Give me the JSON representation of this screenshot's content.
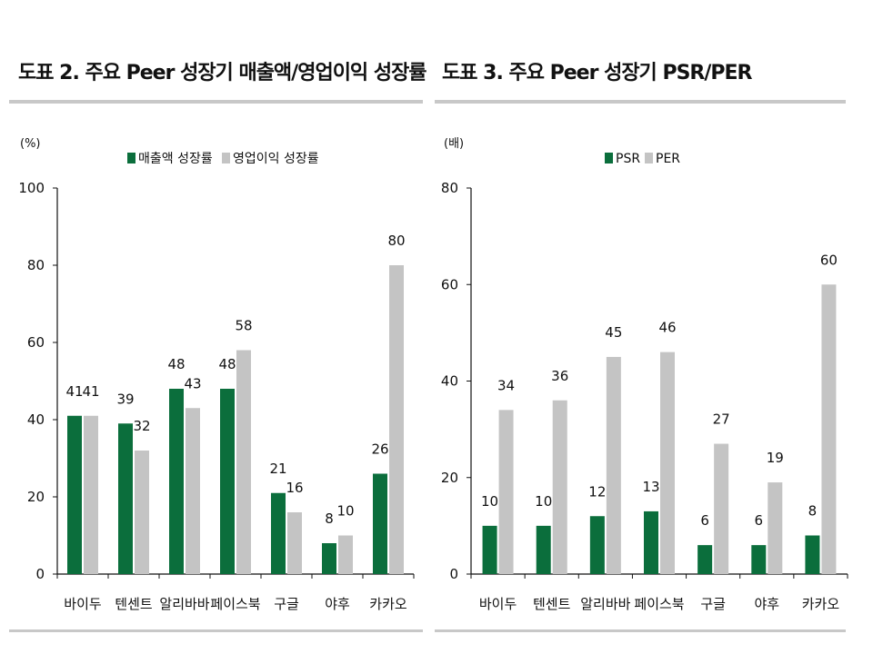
{
  "colors": {
    "primary": "#0b6e3c",
    "secondary": "#c4c4c4",
    "axis": "#111111",
    "rule": "#c8c8c8"
  },
  "chart_data": [
    {
      "type": "bar",
      "title": "도표 2. 주요 Peer 성장기 매출액/영업이익 성장률",
      "ylabel": "(%)",
      "ylim": [
        0,
        100
      ],
      "yticks": [
        0,
        20,
        40,
        60,
        80,
        100
      ],
      "grid": false,
      "legend_position": "top",
      "categories": [
        "바이두",
        "텐센트",
        "알리바바",
        "페이스북",
        "구글",
        "야후",
        "카카오"
      ],
      "series": [
        {
          "name": "매출액 성장률",
          "values": [
            41,
            39,
            48,
            48,
            21,
            8,
            26
          ]
        },
        {
          "name": "영업이익 성장률",
          "values": [
            41,
            32,
            43,
            58,
            16,
            10,
            80
          ]
        }
      ]
    },
    {
      "type": "bar",
      "title": "도표 3. 주요 Peer 성장기 PSR/PER",
      "ylabel": "(배)",
      "ylim": [
        0,
        80
      ],
      "yticks": [
        0,
        20,
        40,
        60,
        80
      ],
      "grid": false,
      "legend_position": "top",
      "categories": [
        "바이두",
        "텐센트",
        "알리바바",
        "페이스북",
        "구글",
        "야후",
        "카카오"
      ],
      "series": [
        {
          "name": "PSR",
          "values": [
            10,
            10,
            12,
            13,
            6,
            6,
            8
          ]
        },
        {
          "name": "PER",
          "values": [
            34,
            36,
            45,
            46,
            27,
            19,
            60
          ]
        }
      ]
    }
  ]
}
